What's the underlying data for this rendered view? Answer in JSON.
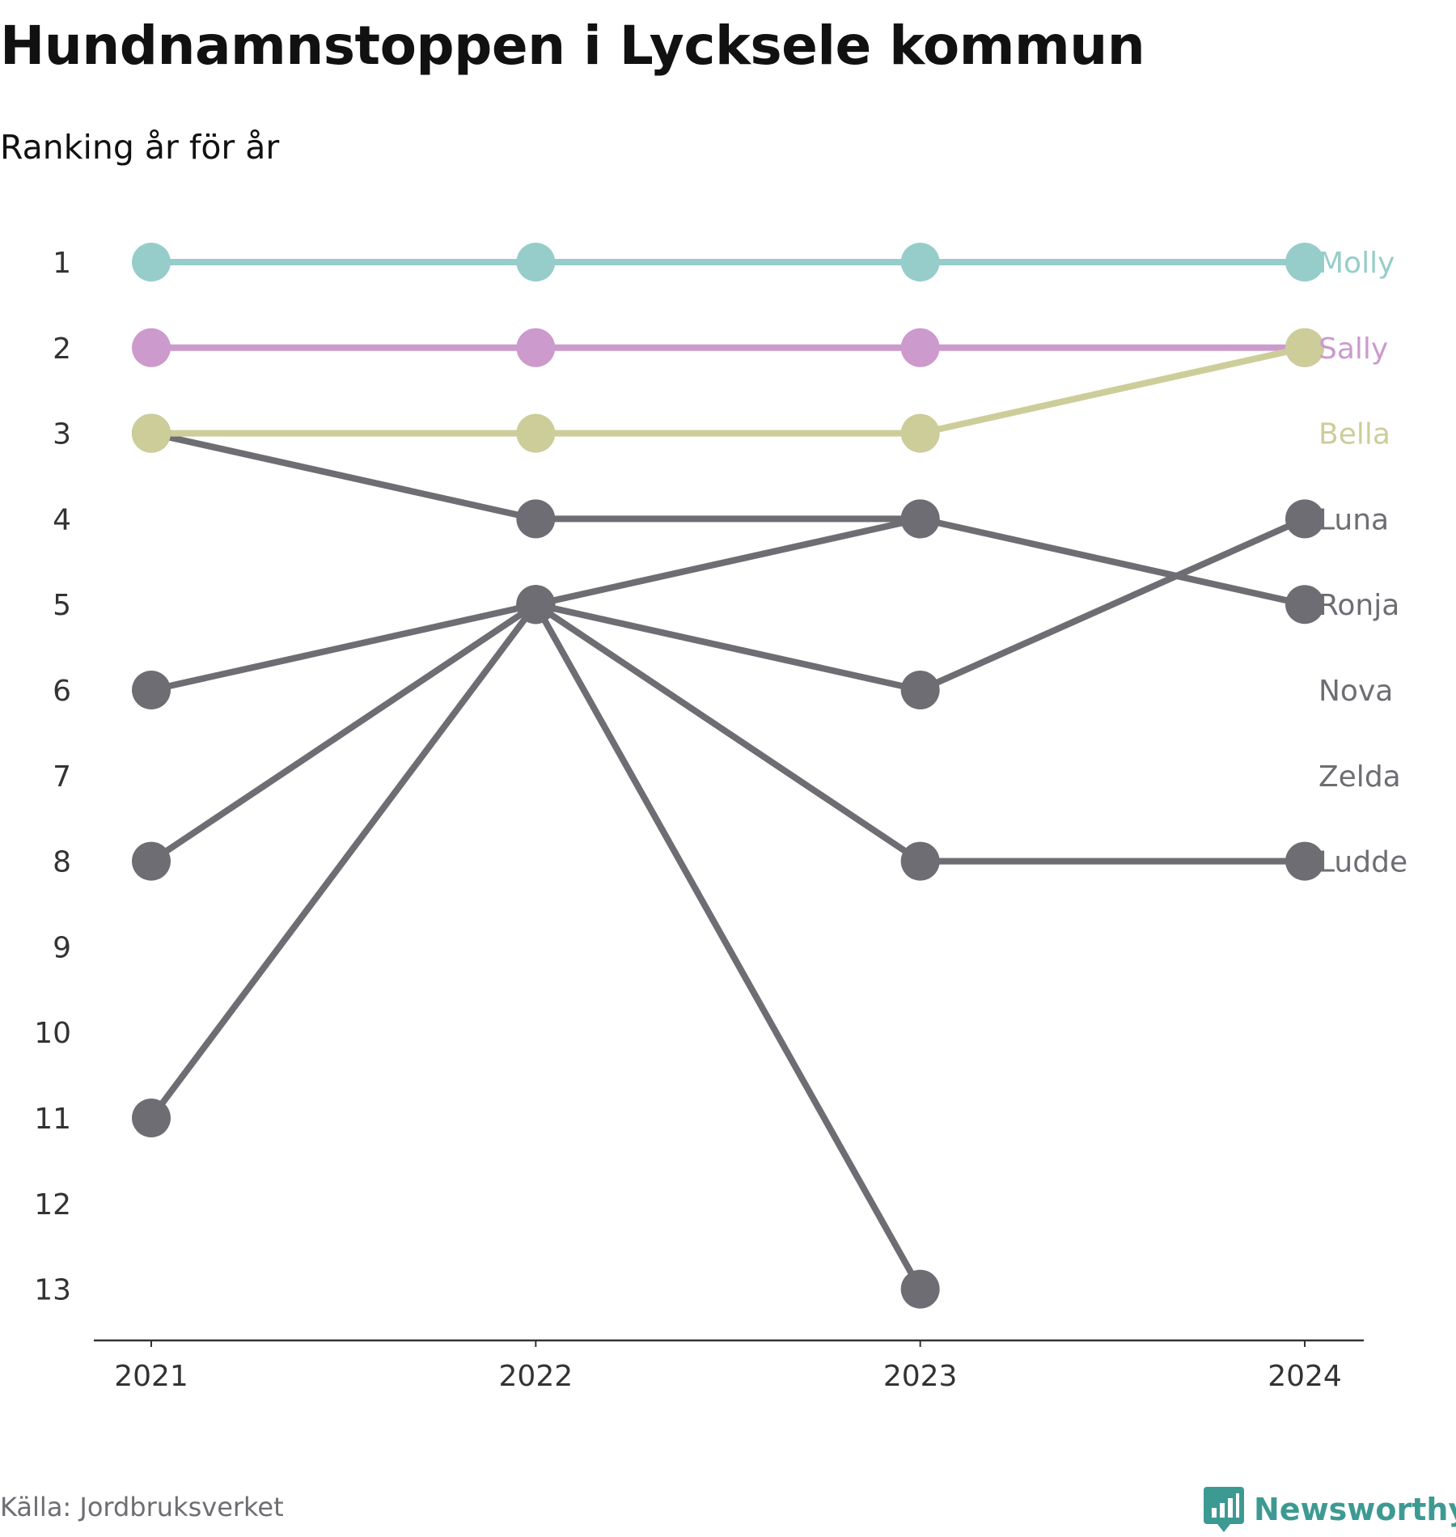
{
  "title": "Hundnamnstoppen i Lycksele kommun",
  "subtitle": "Ranking år för år",
  "source": "Källa: Jordbruksverket",
  "brand": "Newsworthy",
  "brand_color": "#3d9a92",
  "chart_data": {
    "type": "line",
    "subtype": "bump",
    "x": [
      "2021",
      "2022",
      "2023",
      "2024"
    ],
    "y_ticks": [
      "1",
      "2",
      "3",
      "4",
      "5",
      "6",
      "7",
      "8",
      "9",
      "10",
      "11",
      "12",
      "13"
    ],
    "ylim": [
      1,
      13
    ],
    "y_inverted": true,
    "grid": false,
    "legend": "direct labels at right end of lines",
    "series": [
      {
        "name": "Molly",
        "color": "#96cdca",
        "values": [
          1,
          1,
          1,
          1
        ]
      },
      {
        "name": "Sally",
        "color": "#cc9acd",
        "values": [
          2,
          2,
          2,
          2
        ]
      },
      {
        "name": "Bella",
        "color": "#cdcd9a",
        "values": [
          3,
          3,
          3,
          2
        ]
      },
      {
        "name": "Luna",
        "color": "#6e6d73",
        "values": [
          6,
          5,
          6,
          4
        ]
      },
      {
        "name": "Ronja",
        "color": "#6e6d73",
        "values": [
          3,
          4,
          4,
          5
        ]
      },
      {
        "name": "Nova",
        "color": "#6e6d73",
        "values": [
          11,
          5,
          13,
          null
        ]
      },
      {
        "name": "Zelda",
        "color": "#6e6d73",
        "values": [
          8,
          5,
          4,
          null
        ]
      },
      {
        "name": "Ludde",
        "color": "#6e6d73",
        "values": [
          null,
          5,
          8,
          8
        ]
      }
    ]
  }
}
